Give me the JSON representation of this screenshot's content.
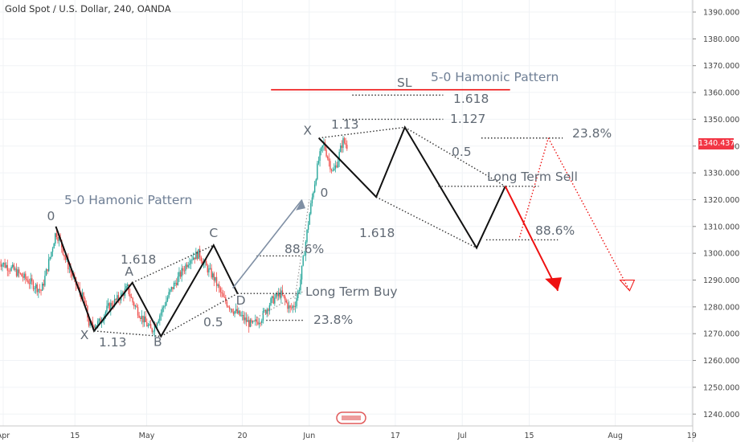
{
  "header": {
    "title": "Gold Spot / U.S. Dollar, 240, OANDA"
  },
  "colors": {
    "up": "#26a69a",
    "down": "#ef5350",
    "pattern": "#111111",
    "arrow_up": "#7f8fa4",
    "sell": "#ee1111",
    "price_tag": "#f23645"
  },
  "chart_data": {
    "type": "candlestick",
    "ylim": [
      1235,
      1395
    ],
    "y_ticks": [
      "1390.000",
      "1380.000",
      "1370.000",
      "1360.000",
      "1350.000",
      "1340.000",
      "1330.000",
      "1320.000",
      "1310.000",
      "1300.000",
      "1290.000",
      "1280.000",
      "1270.000",
      "1260.000",
      "1250.000",
      "1240.000"
    ],
    "y_tick_values": [
      1390,
      1380,
      1370,
      1360,
      1350,
      1340,
      1330,
      1320,
      1310,
      1300,
      1290,
      1280,
      1270,
      1260,
      1250,
      1240
    ],
    "x_ticks": [
      "Apr",
      "15",
      "May",
      "20",
      "Jun",
      "17",
      "Jul",
      "15",
      "Aug",
      "19"
    ],
    "x_tick_values": [
      0,
      15,
      30,
      50,
      64,
      82,
      96,
      110,
      128,
      144
    ],
    "last_price": "1340.437",
    "price_path": [
      [
        -1,
        1297
      ],
      [
        2,
        1294
      ],
      [
        5,
        1290
      ],
      [
        8,
        1286
      ],
      [
        10,
        1300
      ],
      [
        11,
        1308
      ],
      [
        12,
        1304
      ],
      [
        13,
        1298
      ],
      [
        15,
        1289
      ],
      [
        17,
        1282
      ],
      [
        18,
        1273
      ],
      [
        20,
        1274
      ],
      [
        22,
        1280
      ],
      [
        24,
        1283
      ],
      [
        26,
        1287
      ],
      [
        27,
        1282
      ],
      [
        29,
        1276
      ],
      [
        31,
        1271
      ],
      [
        33,
        1278
      ],
      [
        35,
        1286
      ],
      [
        37,
        1292
      ],
      [
        39,
        1298
      ],
      [
        41,
        1300
      ],
      [
        42,
        1296
      ],
      [
        44,
        1291
      ],
      [
        46,
        1283
      ],
      [
        48,
        1279
      ],
      [
        50,
        1276
      ],
      [
        52,
        1273
      ],
      [
        54,
        1276
      ],
      [
        56,
        1282
      ],
      [
        58,
        1285
      ],
      [
        60,
        1279
      ],
      [
        61,
        1281
      ],
      [
        62,
        1288
      ],
      [
        63,
        1301
      ],
      [
        64,
        1314
      ],
      [
        65,
        1325
      ],
      [
        66,
        1335
      ],
      [
        67,
        1341
      ],
      [
        68,
        1335
      ],
      [
        69,
        1330
      ],
      [
        70,
        1335
      ],
      [
        71,
        1342
      ],
      [
        72,
        1340
      ]
    ],
    "patterns": [
      {
        "name": "bullish-5-0",
        "points": [
          [
            11,
            1310
          ],
          [
            19,
            1271
          ],
          [
            27,
            1289
          ],
          [
            33,
            1269
          ],
          [
            44,
            1303
          ],
          [
            49,
            1285
          ]
        ],
        "labels": [
          "0",
          "X",
          "A",
          "B",
          "C",
          "D"
        ]
      },
      {
        "name": "bearish-5-0-projection",
        "points": [
          [
            66,
            1343
          ],
          [
            78,
            1321
          ],
          [
            84,
            1347
          ],
          [
            99,
            1302
          ],
          [
            105,
            1325
          ]
        ],
        "labels": [
          "X",
          "",
          "",
          "",
          ""
        ]
      }
    ],
    "annotations": [
      {
        "text": "5-0 Hamonic Pattern",
        "style": "blue"
      },
      {
        "text": "1.618"
      },
      {
        "text": "1.13"
      },
      {
        "text": "0.5"
      },
      {
        "text": "88.6%"
      },
      {
        "text": "23.8%"
      },
      {
        "text": "Long Term Buy"
      },
      {
        "text": "SL",
        "style": "red"
      },
      {
        "text": "5-0 Hamonic Pattern",
        "style": "blue"
      },
      {
        "text": "1.618"
      },
      {
        "text": "1.127"
      },
      {
        "text": "1.13"
      },
      {
        "text": "0.5"
      },
      {
        "text": "23.8%"
      },
      {
        "text": "Long Term Sell"
      },
      {
        "text": "1.618"
      },
      {
        "text": "88.6%"
      }
    ]
  }
}
